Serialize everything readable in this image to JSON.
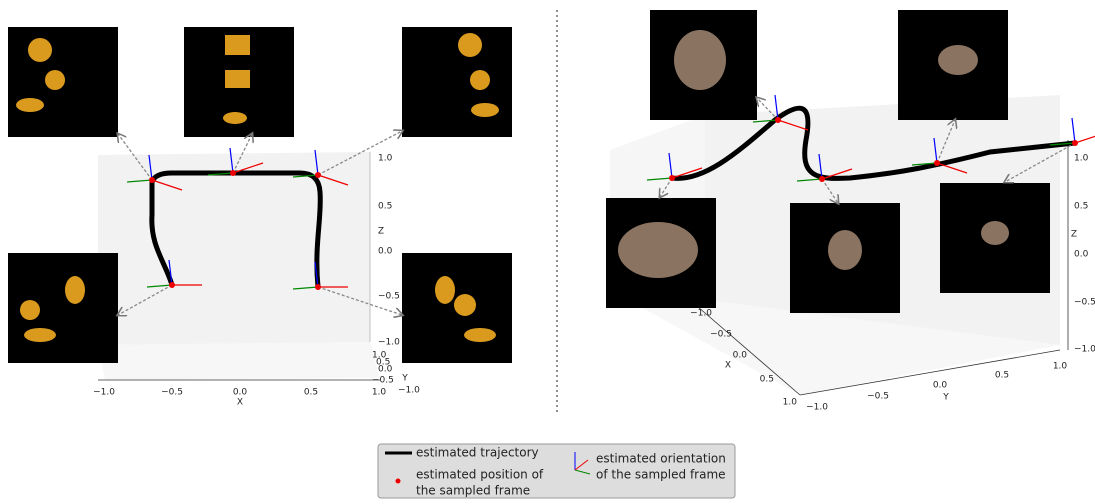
{
  "left_plot": {
    "x_axis": {
      "label": "X",
      "ticks": [
        "−1.0",
        "−0.5",
        "0.0",
        "0.5",
        "1.0"
      ]
    },
    "y_axis": {
      "label": "Y",
      "ticks": [
        "1.0",
        "0.5",
        "0.0",
        "−0.5",
        "−1.0"
      ]
    },
    "z_axis": {
      "label": "Z",
      "ticks": [
        "1.0",
        "0.5",
        "0.0",
        "−0.5",
        "−1.0"
      ]
    }
  },
  "right_plot": {
    "x_axis": {
      "label": "X",
      "ticks": [
        "−1.0",
        "−0.5",
        "0.0",
        "0.5",
        "1.0"
      ]
    },
    "y_axis": {
      "label": "Y",
      "ticks": [
        "−1.0",
        "−0.5",
        "0.0",
        "0.5",
        "1.0"
      ]
    },
    "z_axis": {
      "label": "Z",
      "ticks": [
        "1.0",
        "0.5",
        "0.0",
        "−0.5",
        "−1.0"
      ]
    }
  },
  "legend": {
    "trajectory": "estimated trajectory",
    "position": [
      "estimated position of",
      "the sampled frame"
    ],
    "orientation": [
      "estimated orientation",
      "of the sampled frame"
    ]
  }
}
